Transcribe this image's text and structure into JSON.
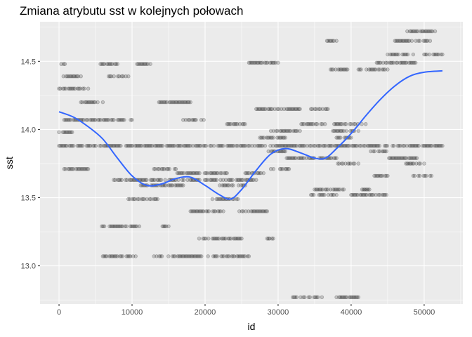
{
  "chart_data": {
    "type": "scatter",
    "title": "Zmiana atrybutu sst w kolejnych połowach",
    "xlabel": "id",
    "ylabel": "sst",
    "xlim": [
      -2600,
      55300
    ],
    "ylim": [
      12.72,
      14.79
    ],
    "x_ticks": [
      0,
      10000,
      20000,
      30000,
      40000,
      50000
    ],
    "x_tick_labels": [
      "0",
      "10000",
      "20000",
      "30000",
      "40000",
      "50000"
    ],
    "y_ticks": [
      13.0,
      13.5,
      14.0,
      14.5
    ],
    "y_tick_labels": [
      "13.0",
      "13.5",
      "14.0",
      "14.5"
    ],
    "grid": true,
    "point_color": "#000000",
    "point_alpha": 0.18,
    "smooth_color": "#3366FF",
    "panel_color": "#EBEBEB",
    "point_segments": [
      {
        "y": 14.3,
        "x": [
          0,
          4000,
          6500
        ]
      },
      {
        "y": 14.48,
        "x": [
          300,
          800,
          5500,
          8000,
          10500,
          12500
        ]
      },
      {
        "y": 13.98,
        "x": [
          0,
          1800
        ]
      },
      {
        "y": 14.07,
        "x": [
          700,
          10000,
          17000,
          20000
        ]
      },
      {
        "y": 14.2,
        "x": [
          3000,
          6000,
          13500,
          18000
        ]
      },
      {
        "y": 14.39,
        "x": [
          600,
          3000,
          6800,
          9500
        ]
      },
      {
        "y": 13.88,
        "x": [
          0,
          52500
        ]
      },
      {
        "y": 13.71,
        "x": [
          700,
          4000,
          13000,
          16000,
          29000,
          31500
        ]
      },
      {
        "y": 13.63,
        "x": [
          7500,
          27000
        ]
      },
      {
        "y": 13.59,
        "x": [
          11000,
          17000,
          22000,
          25500
        ]
      },
      {
        "y": 13.68,
        "x": [
          16000,
          23000,
          25500,
          28000
        ]
      },
      {
        "y": 13.49,
        "x": [
          9500,
          13500,
          21000,
          24500
        ]
      },
      {
        "y": 13.4,
        "x": [
          18000,
          22500,
          24500,
          28500
        ]
      },
      {
        "y": 13.29,
        "x": [
          5500,
          11000,
          14000,
          15000
        ]
      },
      {
        "y": 13.2,
        "x": [
          19000,
          25000,
          28500,
          29500
        ]
      },
      {
        "y": 13.07,
        "x": [
          6000,
          10500,
          13000,
          26000
        ]
      },
      {
        "y": 14.15,
        "x": [
          27000,
          33000,
          34500,
          37000
        ]
      },
      {
        "y": 14.04,
        "x": [
          23000,
          26000,
          33000,
          42000
        ]
      },
      {
        "y": 13.99,
        "x": [
          29000,
          33000,
          37500,
          41000
        ]
      },
      {
        "y": 13.94,
        "x": [
          27500,
          31000,
          38000,
          40000
        ]
      },
      {
        "y": 13.79,
        "x": [
          31000,
          38000,
          45000,
          49000
        ]
      },
      {
        "y": 13.84,
        "x": [
          28500,
          31000,
          42500,
          45000
        ]
      },
      {
        "y": 13.75,
        "x": [
          38000,
          41000,
          47500,
          50000
        ]
      },
      {
        "y": 13.66,
        "x": [
          43000,
          45000,
          48500,
          51000
        ]
      },
      {
        "y": 13.56,
        "x": [
          35000,
          39000,
          41500,
          42500
        ]
      },
      {
        "y": 13.52,
        "x": [
          34500,
          38000,
          40000,
          45000
        ]
      },
      {
        "y": 14.44,
        "x": [
          37000,
          39500,
          41000,
          45000
        ]
      },
      {
        "y": 14.49,
        "x": [
          26000,
          30000,
          43500,
          49000
        ]
      },
      {
        "y": 14.55,
        "x": [
          45000,
          48500,
          50000,
          52500
        ]
      },
      {
        "y": 14.65,
        "x": [
          36500,
          38000,
          46000,
          51000
        ]
      },
      {
        "y": 14.72,
        "x": [
          47500,
          51500
        ]
      },
      {
        "y": 12.77,
        "x": [
          32000,
          36000,
          38000,
          41000
        ]
      }
    ],
    "smooth_x": [
      0,
      2000,
      4000,
      6000,
      8000,
      10000,
      12000,
      14000,
      16000,
      18000,
      20000,
      22000,
      23500,
      25000,
      27000,
      29000,
      31000,
      33000,
      35000,
      36500,
      38000,
      40000,
      42000,
      44000,
      46000,
      48000,
      50000,
      52500
    ],
    "smooth_y": [
      14.13,
      14.09,
      14.02,
      13.93,
      13.79,
      13.66,
      13.59,
      13.6,
      13.64,
      13.65,
      13.59,
      13.52,
      13.49,
      13.56,
      13.7,
      13.82,
      13.86,
      13.83,
      13.79,
      13.79,
      13.86,
      13.97,
      14.1,
      14.22,
      14.32,
      14.39,
      14.42,
      14.43
    ]
  }
}
